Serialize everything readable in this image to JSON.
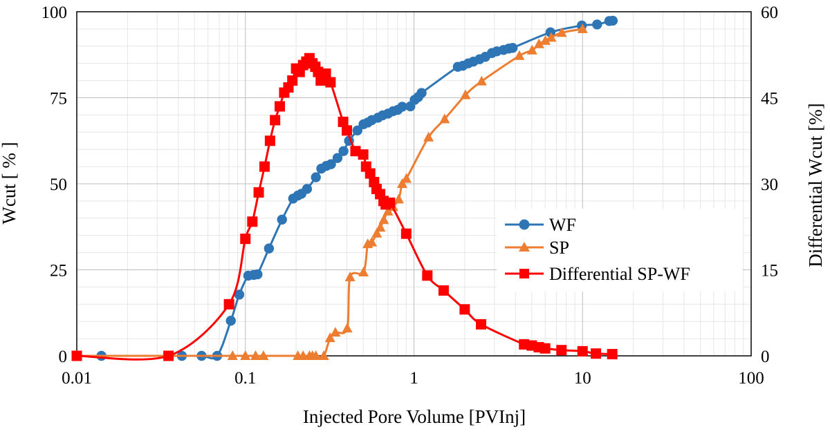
{
  "chart_data": {
    "type": "scatter",
    "title": "",
    "xlabel": "Injected Pore Volume [PVInj]",
    "ylabel": "Wcut [ % ]",
    "y2label": "Differential Wcut [%]",
    "xscale": "log",
    "xlim": [
      0.01,
      100
    ],
    "ylim": [
      0,
      100
    ],
    "y2lim": [
      0,
      60
    ],
    "grid": true,
    "legend_position": "center-right",
    "x_ticks": [
      "0.01",
      "0.1",
      "1",
      "10",
      "100"
    ],
    "y_ticks": [
      "0",
      "25",
      "50",
      "75",
      "100"
    ],
    "y2_ticks": [
      "0",
      "15",
      "30",
      "45",
      "60"
    ],
    "series": [
      {
        "name": "WF",
        "color": "#2E75B6",
        "marker": "circle",
        "axis": "left",
        "x": [
          0.01,
          0.014,
          0.042,
          0.055,
          0.068,
          0.082,
          0.092,
          0.104,
          0.112,
          0.118,
          0.138,
          0.165,
          0.192,
          0.205,
          0.215,
          0.232,
          0.262,
          0.282,
          0.302,
          0.322,
          0.352,
          0.382,
          0.412,
          0.462,
          0.502,
          0.532,
          0.562,
          0.612,
          0.652,
          0.702,
          0.752,
          0.802,
          0.852,
          0.952,
          1.01,
          1.06,
          1.11,
          1.82,
          1.95,
          2.1,
          2.25,
          2.45,
          2.65,
          2.9,
          3.1,
          3.4,
          3.65,
          3.85,
          6.45,
          9.9,
          12.2,
          14.4,
          15.1
        ],
        "y": [
          0,
          0,
          0,
          0,
          0,
          10.2,
          17.8,
          23.3,
          23.5,
          23.7,
          31.2,
          39.6,
          45.7,
          46.6,
          47.1,
          48.5,
          51.9,
          54.4,
          55.2,
          55.7,
          57.5,
          59.5,
          62.5,
          65.5,
          67.3,
          67.8,
          68.5,
          69.2,
          69.9,
          70.4,
          71.1,
          71.5,
          72.4,
          72.5,
          74.4,
          75.2,
          76.4,
          84.0,
          84.3,
          85.0,
          85.5,
          86.2,
          86.9,
          88.0,
          88.5,
          88.9,
          89.3,
          89.5,
          94.0,
          96.0,
          96.3,
          97.3,
          97.4
        ]
      },
      {
        "name": "SP",
        "color": "#ED7D31",
        "marker": "triangle",
        "axis": "left",
        "x": [
          0.01,
          0.084,
          0.1,
          0.115,
          0.128,
          0.205,
          0.22,
          0.24,
          0.25,
          0.262,
          0.292,
          0.318,
          0.342,
          0.402,
          0.418,
          0.502,
          0.532,
          0.562,
          0.602,
          0.632,
          0.662,
          0.702,
          0.752,
          0.812,
          0.852,
          0.902,
          1.22,
          1.52,
          2.02,
          2.52,
          4.22,
          5.02,
          5.52,
          6.02,
          6.52,
          7.52,
          10.0
        ],
        "y": [
          0,
          0,
          0,
          0,
          0,
          0,
          0,
          0,
          0,
          0,
          0,
          5.2,
          6.8,
          8.0,
          22.9,
          24.3,
          32.5,
          33.0,
          35.6,
          37.3,
          39.5,
          42.0,
          43.3,
          45.5,
          50.0,
          51.5,
          63.5,
          68.8,
          75.8,
          79.8,
          87.2,
          88.8,
          90.6,
          91.6,
          92.5,
          93.9,
          95.0
        ]
      },
      {
        "name": "Differential SP-WF",
        "color": "#FF0000",
        "marker": "square",
        "axis": "right",
        "x": [
          0.01,
          0.035,
          0.08,
          0.1,
          0.11,
          0.12,
          0.13,
          0.14,
          0.15,
          0.16,
          0.17,
          0.18,
          0.19,
          0.2,
          0.21,
          0.22,
          0.23,
          0.24,
          0.25,
          0.26,
          0.27,
          0.28,
          0.29,
          0.3,
          0.32,
          0.38,
          0.4,
          0.45,
          0.5,
          0.52,
          0.55,
          0.58,
          0.6,
          0.63,
          0.66,
          0.68,
          0.72,
          0.9,
          1.2,
          1.5,
          2.0,
          2.5,
          4.5,
          5.0,
          5.5,
          6.0,
          7.5,
          10.0,
          12.0,
          15.0
        ],
        "y": [
          0,
          0,
          9.0,
          20.4,
          23.4,
          28.5,
          33.0,
          37.5,
          41.1,
          43.5,
          45.9,
          46.8,
          48.0,
          50.1,
          49.5,
          50.7,
          51.3,
          51.9,
          51.0,
          50.4,
          49.5,
          48.0,
          48.6,
          49.2,
          47.7,
          40.8,
          39.3,
          35.7,
          35.1,
          33.0,
          31.8,
          30.3,
          29.1,
          28.2,
          27.0,
          26.4,
          26.7,
          21.3,
          14.0,
          11.4,
          8.1,
          5.5,
          2.0,
          1.8,
          1.5,
          1.3,
          1.0,
          0.8,
          0.4,
          0.3
        ]
      }
    ]
  }
}
